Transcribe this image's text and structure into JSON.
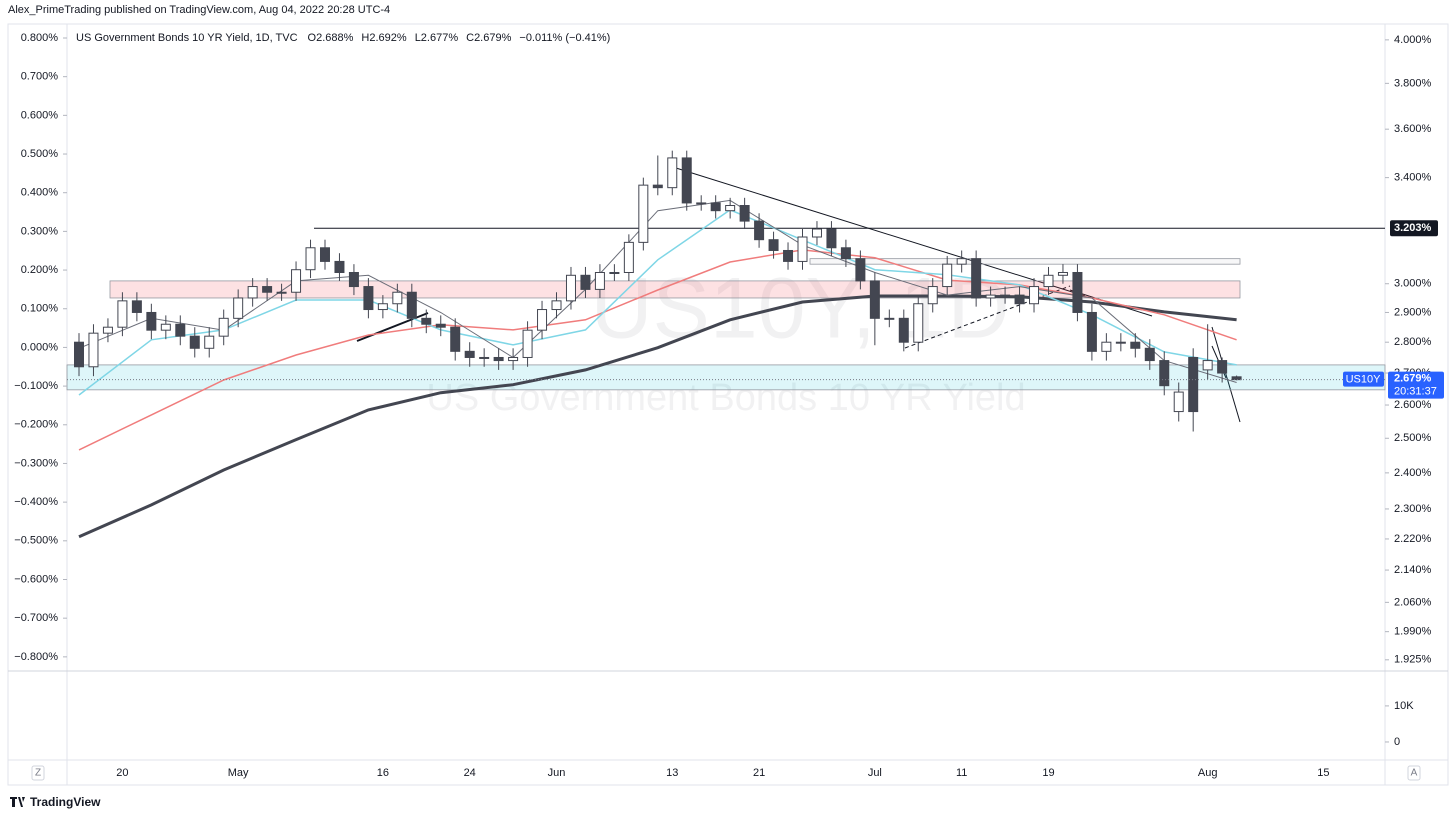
{
  "header": {
    "publisher": "Alex_PrimeTrading published on TradingView.com, Aug 04, 2022 20:28 UTC-4"
  },
  "chart_data": {
    "type": "candlestick",
    "title": "US Government Bonds 10 YR Yield, 1D, TVC",
    "legend_values": [
      "O2.688%",
      "H2.692%",
      "L2.677%",
      "C2.679%",
      "−0.011% (−0.41%)"
    ],
    "watermark": [
      "US10Y, 1D",
      "US Government Bonds 10 YR Yield"
    ],
    "categories": [
      null,
      null,
      null,
      "20",
      null,
      null,
      null,
      null,
      null,
      null,
      null,
      "May",
      null,
      null,
      null,
      null,
      null,
      null,
      null,
      null,
      null,
      "16",
      null,
      null,
      null,
      null,
      null,
      "24",
      null,
      null,
      null,
      null,
      null,
      "Jun",
      null,
      null,
      null,
      null,
      null,
      null,
      null,
      "13",
      null,
      null,
      null,
      null,
      null,
      "21",
      null,
      null,
      null,
      null,
      null,
      null,
      null,
      "Jul",
      null,
      null,
      null,
      null,
      null,
      "11",
      null,
      null,
      null,
      null,
      null,
      "19",
      null,
      null,
      null,
      null,
      null,
      null,
      null,
      null,
      null,
      null,
      "Aug",
      null,
      null,
      null,
      null,
      null,
      null,
      null,
      "15",
      null,
      null,
      null,
      null
    ],
    "open": [
      2.8,
      2.72,
      2.83,
      2.85,
      2.94,
      2.9,
      2.84,
      2.86,
      2.82,
      2.78,
      2.82,
      2.88,
      2.95,
      2.99,
      2.97,
      2.97,
      3.05,
      3.13,
      3.08,
      3.04,
      2.99,
      2.91,
      2.93,
      2.97,
      2.88,
      2.86,
      2.85,
      2.77,
      2.75,
      2.75,
      2.74,
      2.75,
      2.84,
      2.91,
      2.94,
      3.03,
      2.98,
      3.04,
      3.04,
      3.15,
      3.37,
      3.36,
      3.48,
      3.3,
      3.3,
      3.27,
      3.29,
      3.23,
      3.16,
      3.12,
      3.08,
      3.17,
      3.2,
      3.13,
      3.09,
      3.01,
      2.88,
      2.88,
      2.8,
      2.93,
      2.99,
      3.07,
      3.09,
      2.95,
      2.96,
      2.96,
      2.93,
      2.99,
      3.03,
      3.04,
      2.9,
      2.77,
      2.8,
      2.8,
      2.78,
      2.74,
      2.58,
      2.75,
      2.71,
      2.74,
      2.688,
      null,
      null,
      null,
      null,
      null,
      null,
      null,
      null,
      null,
      null
    ],
    "high": [
      2.83,
      2.86,
      2.88,
      2.97,
      2.97,
      2.93,
      2.89,
      2.89,
      2.85,
      2.85,
      2.91,
      2.98,
      3.02,
      3.02,
      3.0,
      3.08,
      3.16,
      3.16,
      3.11,
      3.07,
      3.02,
      2.96,
      3.0,
      3.0,
      2.91,
      2.89,
      2.88,
      2.8,
      2.78,
      2.78,
      2.78,
      2.87,
      2.94,
      2.97,
      3.06,
      3.06,
      3.07,
      3.07,
      3.18,
      3.4,
      3.49,
      3.51,
      3.51,
      3.33,
      3.33,
      3.32,
      3.32,
      3.26,
      3.19,
      3.15,
      3.2,
      3.23,
      3.23,
      3.16,
      3.12,
      3.04,
      2.91,
      2.91,
      2.96,
      3.02,
      3.1,
      3.12,
      3.12,
      2.99,
      2.99,
      2.99,
      3.02,
      3.06,
      3.07,
      3.07,
      2.93,
      2.83,
      2.83,
      2.83,
      2.81,
      2.77,
      2.67,
      2.78,
      2.86,
      2.75,
      2.692,
      null,
      null,
      null,
      null,
      null,
      null,
      null,
      null,
      null,
      null
    ],
    "low": [
      2.69,
      2.69,
      2.8,
      2.82,
      2.87,
      2.81,
      2.81,
      2.79,
      2.75,
      2.75,
      2.79,
      2.85,
      2.92,
      2.94,
      2.94,
      2.94,
      3.02,
      3.05,
      3.01,
      2.96,
      2.88,
      2.88,
      2.9,
      2.85,
      2.83,
      2.82,
      2.74,
      2.72,
      2.72,
      2.71,
      2.71,
      2.72,
      2.81,
      2.88,
      2.91,
      2.95,
      2.95,
      3.01,
      3.01,
      3.12,
      3.33,
      3.33,
      3.27,
      3.27,
      3.24,
      3.24,
      3.2,
      3.13,
      3.09,
      3.05,
      3.05,
      3.14,
      3.1,
      3.06,
      2.98,
      2.79,
      2.85,
      2.77,
      2.77,
      2.9,
      2.96,
      3.04,
      2.92,
      2.92,
      2.93,
      2.9,
      2.9,
      2.96,
      3.0,
      2.87,
      2.74,
      2.74,
      2.77,
      2.75,
      2.71,
      2.63,
      2.55,
      2.52,
      2.68,
      2.67,
      2.677,
      null,
      null,
      null,
      null,
      null,
      null,
      null,
      null,
      null,
      null
    ],
    "close": [
      2.72,
      2.83,
      2.85,
      2.94,
      2.9,
      2.84,
      2.86,
      2.82,
      2.78,
      2.82,
      2.88,
      2.95,
      2.99,
      2.97,
      2.97,
      3.05,
      3.13,
      3.08,
      3.04,
      2.99,
      2.91,
      2.93,
      2.97,
      2.88,
      2.86,
      2.85,
      2.77,
      2.75,
      2.75,
      2.74,
      2.75,
      2.84,
      2.91,
      2.94,
      3.03,
      2.98,
      3.04,
      3.04,
      3.15,
      3.37,
      3.36,
      3.48,
      3.3,
      3.3,
      3.27,
      3.29,
      3.23,
      3.16,
      3.12,
      3.08,
      3.17,
      3.2,
      3.13,
      3.09,
      3.01,
      2.88,
      2.88,
      2.8,
      2.93,
      2.99,
      3.07,
      3.09,
      2.95,
      2.96,
      2.96,
      2.93,
      2.99,
      3.03,
      3.04,
      2.9,
      2.77,
      2.8,
      2.8,
      2.78,
      2.74,
      2.66,
      2.64,
      2.58,
      2.74,
      2.7,
      2.679,
      null,
      null,
      null,
      null,
      null,
      null,
      null,
      null,
      null,
      null
    ],
    "up_color": "#ffffff",
    "down_color": "#434651",
    "border_color": "#434651",
    "ylim": [
      1.902,
      4.066
    ],
    "log_scale": true,
    "yticks": [
      {
        "value": 4.0,
        "label": "4.000%"
      },
      {
        "value": 3.8,
        "label": "3.800%"
      },
      {
        "value": 3.6,
        "label": "3.600%"
      },
      {
        "value": 3.4,
        "label": "3.400%"
      },
      {
        "value": 3.0,
        "label": "3.000%"
      },
      {
        "value": 2.9,
        "label": "2.900%"
      },
      {
        "value": 2.8,
        "label": "2.800%"
      },
      {
        "value": 2.7,
        "label": "2.700%"
      },
      {
        "value": 2.6,
        "label": "2.600%"
      },
      {
        "value": 2.5,
        "label": "2.500%"
      },
      {
        "value": 2.4,
        "label": "2.400%"
      },
      {
        "value": 2.3,
        "label": "2.300%"
      },
      {
        "value": 2.22,
        "label": "2.220%"
      },
      {
        "value": 2.14,
        "label": "2.140%"
      },
      {
        "value": 2.06,
        "label": "2.060%"
      },
      {
        "value": 1.99,
        "label": "1.990%"
      },
      {
        "value": 1.925,
        "label": "1.925%"
      }
    ],
    "y2lim": [
      -0.834,
      0.831
    ],
    "y2ticks": [
      {
        "value": 0.8,
        "label": "0.800%"
      },
      {
        "value": 0.7,
        "label": "0.700%"
      },
      {
        "value": 0.6,
        "label": "0.600%"
      },
      {
        "value": 0.5,
        "label": "0.500%"
      },
      {
        "value": 0.4,
        "label": "0.400%"
      },
      {
        "value": 0.3,
        "label": "0.300%"
      },
      {
        "value": 0.2,
        "label": "0.200%"
      },
      {
        "value": 0.1,
        "label": "0.100%"
      },
      {
        "value": 0,
        "label": "0.000%"
      },
      {
        "value": -0.1,
        "label": "−0.100%"
      },
      {
        "value": -0.2,
        "label": "−0.200%"
      },
      {
        "value": -0.3,
        "label": "−0.300%"
      },
      {
        "value": -0.4,
        "label": "−0.400%"
      },
      {
        "value": -0.5,
        "label": "−0.500%"
      },
      {
        "value": -0.6,
        "label": "−0.600%"
      },
      {
        "value": -0.7,
        "label": "−0.700%"
      },
      {
        "value": -0.8,
        "label": "−0.800%"
      }
    ],
    "lines": [
      {
        "color": "#434651",
        "width": 3,
        "x": [
          0,
          5,
          10,
          15,
          20,
          25,
          30,
          35,
          40,
          45,
          50,
          55,
          60,
          65,
          70,
          75,
          80
        ],
        "values": [
          2.226,
          2.311,
          2.408,
          2.496,
          2.585,
          2.638,
          2.663,
          2.71,
          2.782,
          2.875,
          2.936,
          2.957,
          2.957,
          2.954,
          2.936,
          2.902,
          2.875
        ]
      },
      {
        "color": "#f07c7c",
        "width": 1.5,
        "x": [
          0,
          5,
          10,
          15,
          20,
          25,
          30,
          35,
          40,
          45,
          50,
          55,
          60,
          65,
          70,
          75,
          80
        ],
        "values": [
          2.466,
          2.57,
          2.678,
          2.758,
          2.824,
          2.858,
          2.841,
          2.875,
          2.978,
          3.078,
          3.122,
          3.093,
          3.013,
          2.996,
          2.95,
          2.892,
          2.808
        ]
      },
      {
        "color": "#7fd6e6",
        "width": 1.5,
        "x": [
          0,
          5,
          10,
          15,
          20,
          25,
          30,
          35,
          40,
          45,
          50,
          55,
          60,
          65,
          70,
          75,
          80
        ],
        "values": [
          2.631,
          2.808,
          2.841,
          2.943,
          2.943,
          2.841,
          2.791,
          2.841,
          3.086,
          3.273,
          3.159,
          3.05,
          3.032,
          2.996,
          2.892,
          2.768,
          2.726
        ]
      },
      {
        "color": "#6a6d78",
        "width": 1,
        "x": [
          0,
          5,
          10,
          15,
          20,
          25,
          30,
          35,
          40,
          45,
          50,
          55,
          60,
          65,
          70,
          75,
          80
        ],
        "values": [
          2.78,
          2.88,
          2.84,
          3.01,
          3.03,
          2.9,
          2.75,
          2.98,
          3.27,
          3.31,
          3.14,
          3.04,
          2.96,
          2.99,
          2.95,
          2.74,
          2.67
        ]
      }
    ],
    "zones": [
      {
        "low": 2.95,
        "high": 3.01,
        "color": "rgba(242,54,69,0.15)"
      },
      {
        "low": 3.07,
        "high": 3.09,
        "color": "rgba(120,123,134,0.06)"
      },
      {
        "low": 2.647,
        "high": 2.726,
        "color": "rgba(0,188,212,0.13)"
      }
    ],
    "horizontal_line": {
      "value": 3.203,
      "label": "3.203%"
    },
    "price_tag": {
      "symbol": "US10Y",
      "price": "2.679%",
      "countdown": "20:31:37",
      "color": "#2962ff"
    },
    "volume_ylim": [
      -5000,
      19400
    ],
    "volume_yticks": [
      {
        "value": 10000,
        "label": "10K"
      },
      0
    ]
  },
  "footer": {
    "brand": "TradingView",
    "left_button": "Z",
    "right_button": "A"
  }
}
